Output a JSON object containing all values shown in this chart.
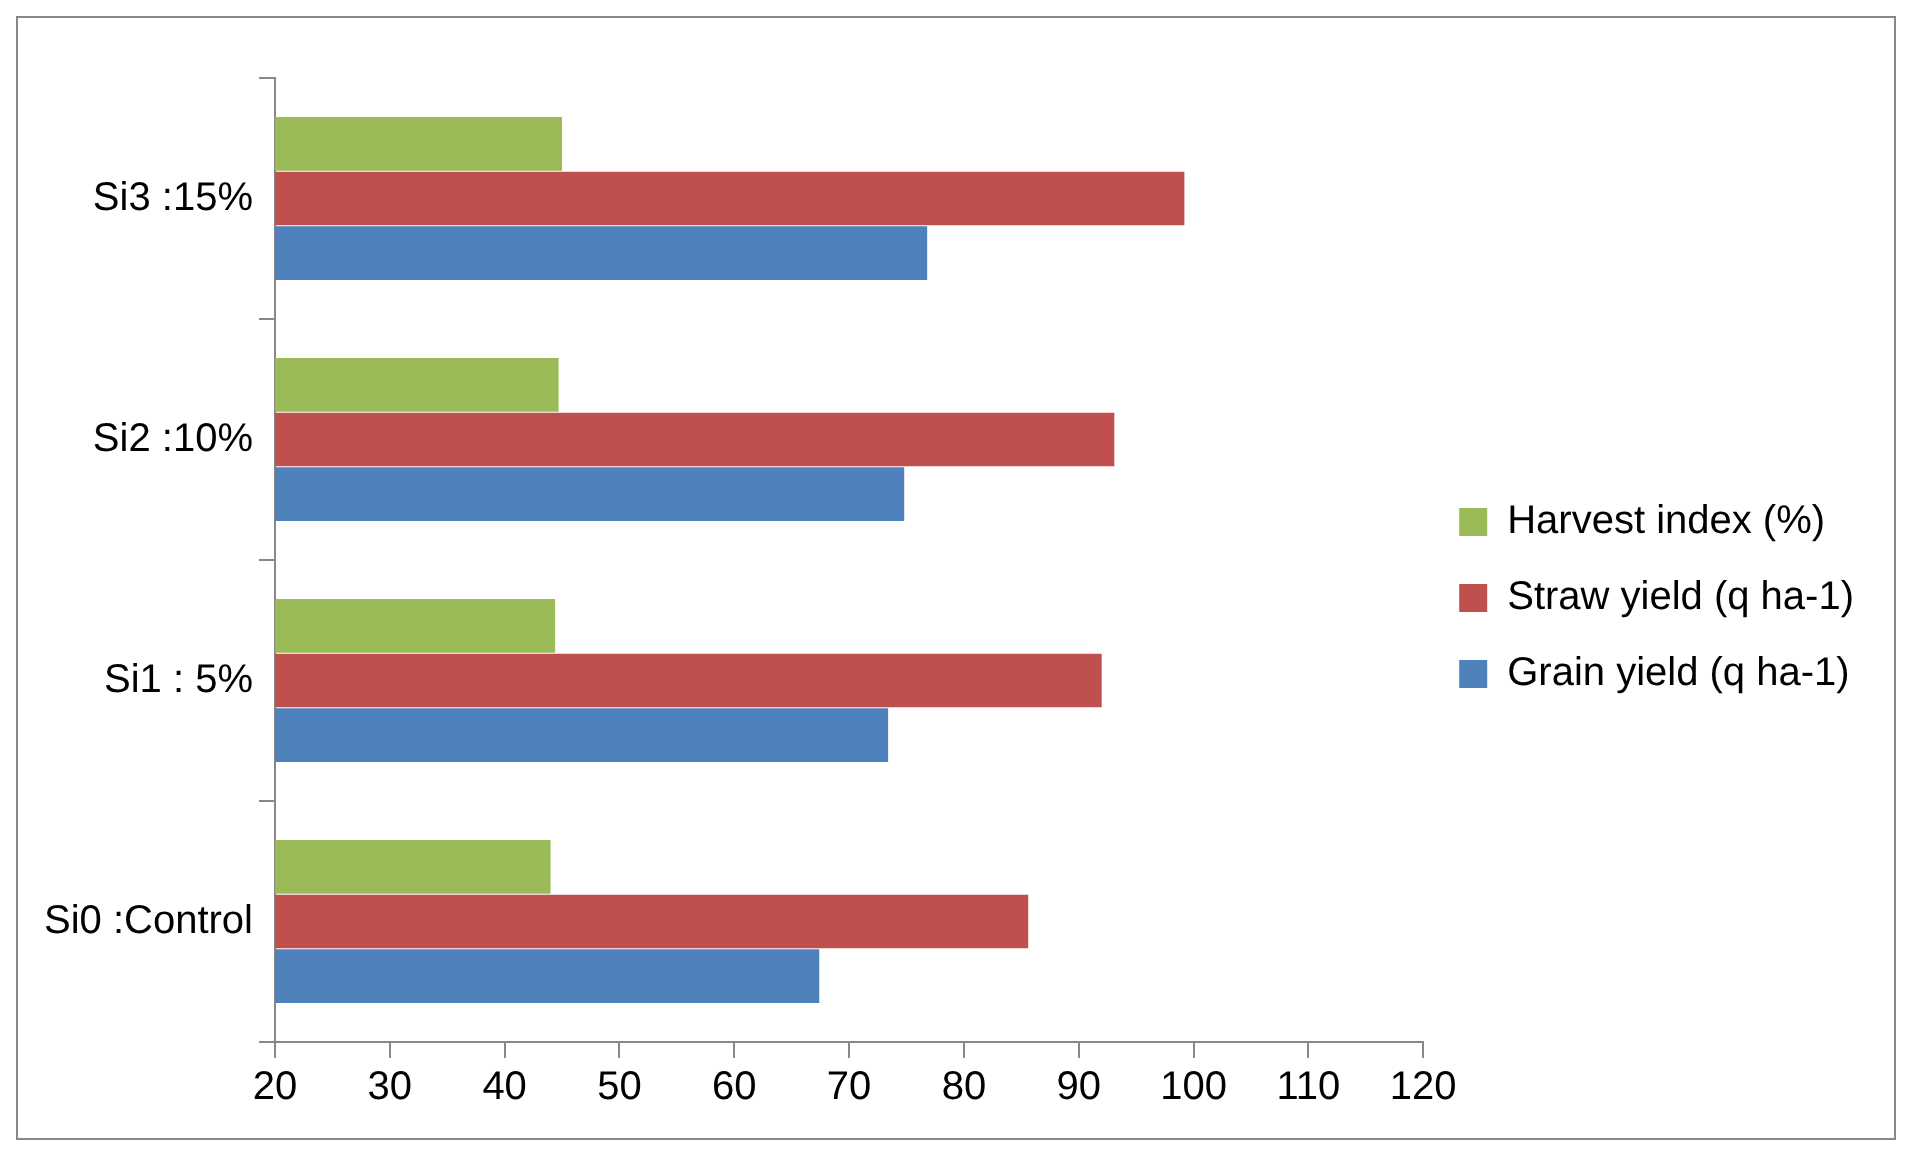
{
  "chart_data": {
    "type": "bar",
    "orientation": "horizontal",
    "categories": [
      "Si3 :15%",
      "Si2 :10%",
      "Si1 : 5%",
      "Si0 :Control"
    ],
    "series": [
      {
        "name": "Harvest index (%)",
        "color": "#9bbb59",
        "values": [
          45.0,
          44.7,
          44.4,
          44.0
        ]
      },
      {
        "name": "Straw yield (q ha-1)",
        "color": "#c0504d",
        "values": [
          99.2,
          93.1,
          92.0,
          85.6
        ]
      },
      {
        "name": "Grain yield (q ha-1)",
        "color": "#4f81bd",
        "values": [
          76.8,
          74.8,
          73.4,
          67.4
        ]
      }
    ],
    "xlim": [
      20,
      120
    ],
    "xticks": [
      20,
      30,
      40,
      50,
      60,
      70,
      80,
      90,
      100,
      110,
      120
    ],
    "grid": false,
    "legend": "right"
  }
}
